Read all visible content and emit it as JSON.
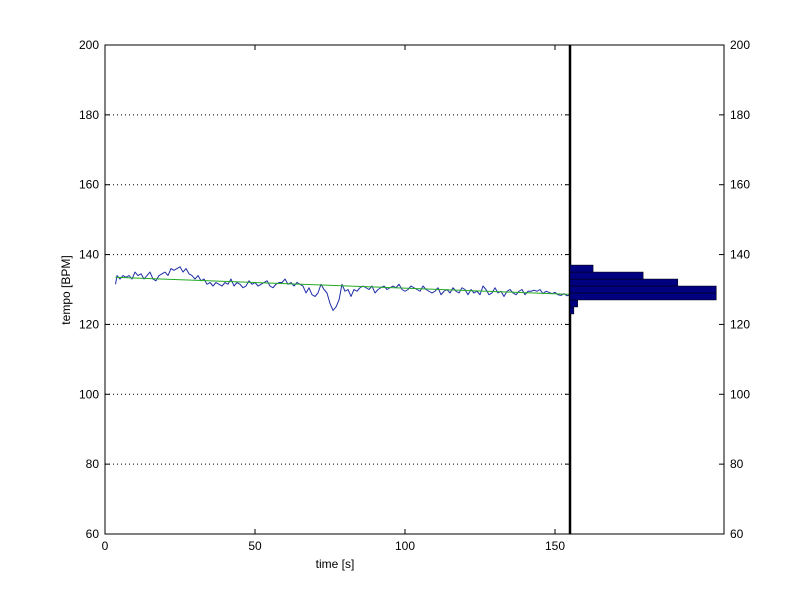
{
  "chart_data": [
    {
      "type": "line",
      "xlabel": "time [s]",
      "ylabel": "tempo [BPM]",
      "xlim": [
        0,
        155
      ],
      "ylim": [
        60,
        200
      ],
      "x_ticks": [
        "0",
        "50",
        "100",
        "150"
      ],
      "y_ticks": [
        "60",
        "80",
        "100",
        "120",
        "140",
        "160",
        "180",
        "200"
      ],
      "grid": "horizontal dotted",
      "series": [
        {
          "color": "#1f2ea8",
          "x": [
            3.5,
            4,
            5,
            6,
            7,
            8,
            9,
            10,
            11,
            12,
            13,
            14,
            15,
            16,
            17,
            18,
            19,
            20,
            21,
            22,
            23,
            24,
            25,
            26,
            27,
            28,
            29,
            30,
            31,
            32,
            33,
            34,
            35,
            36,
            37,
            38,
            39,
            40,
            41,
            42,
            43,
            44,
            45,
            46,
            47,
            48,
            49,
            50,
            51,
            52,
            53,
            54,
            55,
            56,
            57,
            58,
            59,
            60,
            61,
            62,
            63,
            64,
            65,
            66,
            67,
            68,
            69,
            70,
            71,
            72,
            73,
            74,
            75,
            76,
            77,
            78,
            79,
            80,
            81,
            82,
            83,
            84,
            85,
            86,
            87,
            88,
            89,
            90,
            91,
            92,
            93,
            94,
            95,
            96,
            97,
            98,
            99,
            100,
            101,
            102,
            103,
            104,
            105,
            106,
            107,
            108,
            109,
            110,
            111,
            112,
            113,
            114,
            115,
            116,
            117,
            118,
            119,
            120,
            121,
            122,
            123,
            124,
            125,
            126,
            127,
            128,
            129,
            130,
            131,
            132,
            133,
            134,
            135,
            136,
            137,
            138,
            139,
            140,
            141,
            142,
            143,
            144,
            145,
            146,
            147,
            148,
            149,
            150,
            151,
            152,
            153,
            154,
            155
          ],
          "y": [
            131.5,
            134,
            133,
            134,
            133.5,
            134,
            133,
            135,
            134,
            134.5,
            133,
            134,
            135,
            133,
            132.5,
            134,
            134.5,
            135,
            134,
            136,
            135.5,
            136,
            136.5,
            135,
            136,
            134.5,
            134,
            133,
            134,
            132.5,
            133,
            131.5,
            132,
            131,
            132,
            131.5,
            131,
            132,
            131.5,
            133,
            131,
            132,
            131.5,
            130.5,
            131,
            132.5,
            131.5,
            132,
            131,
            131.5,
            132,
            132.5,
            131,
            130.5,
            131.5,
            132,
            132,
            133,
            131.5,
            132,
            131,
            132,
            131.5,
            131,
            129,
            130.5,
            128.5,
            128,
            129,
            131.5,
            130,
            129,
            126,
            124,
            125,
            127,
            131.5,
            129.5,
            130,
            128,
            130,
            129.5,
            130.5,
            131,
            130.5,
            130,
            131,
            129,
            130,
            130.5,
            131,
            130,
            130.5,
            131,
            130.5,
            131.5,
            130,
            129.5,
            130,
            131,
            130.5,
            130,
            129.5,
            131,
            130,
            129.5,
            129,
            129.5,
            130.5,
            128.5,
            129.5,
            130,
            129,
            130.5,
            129.5,
            129,
            130.5,
            130,
            128.5,
            130,
            129,
            129.5,
            128.5,
            131,
            130,
            128.5,
            129,
            130.5,
            129,
            129.5,
            128,
            129.5,
            130,
            129,
            128.5,
            129.5,
            130,
            128.5,
            129.5,
            129.5,
            129.8,
            129.5,
            130,
            128.8,
            129.5,
            129.2,
            128.8,
            129.2,
            128.5,
            128.3,
            128.8,
            128.2,
            128.5
          ]
        },
        {
          "color": "#22aa22",
          "x": [
            3.5,
            155
          ],
          "y": [
            133.5,
            128.6
          ]
        }
      ],
      "marker_x": 155
    },
    {
      "type": "bar",
      "orientation": "horizontal",
      "ylim": [
        60,
        200
      ],
      "y_ticks": [
        "60",
        "80",
        "100",
        "120",
        "140",
        "160",
        "180",
        "200"
      ],
      "color": "#000080",
      "bin_edges": [
        123,
        125,
        127,
        129,
        131,
        133,
        135,
        137
      ],
      "counts": [
        1,
        2,
        38,
        38,
        28,
        19,
        6
      ],
      "count_max": 40
    }
  ]
}
